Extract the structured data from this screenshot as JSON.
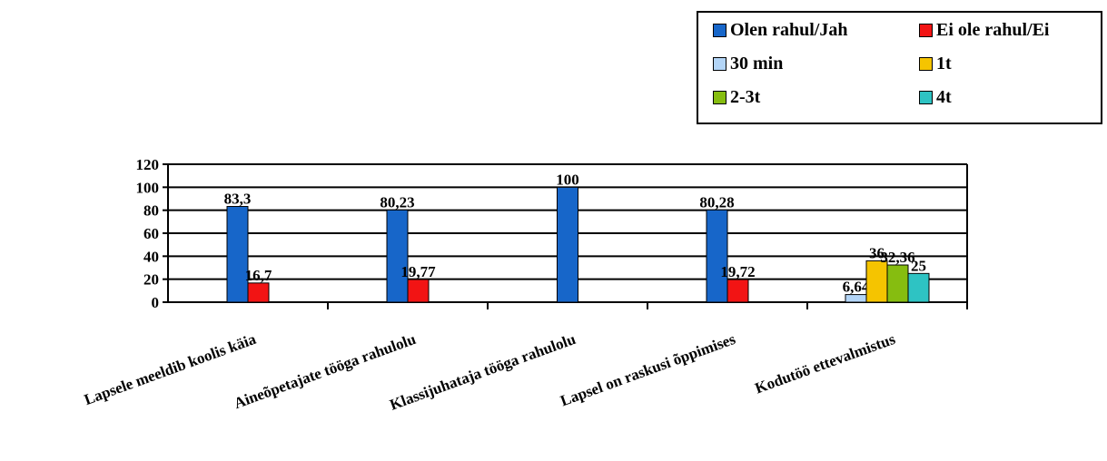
{
  "chart_data": {
    "type": "bar",
    "categories": [
      "Lapsele meeldib koolis käia",
      "Aineõpetajate tööga rahulolu",
      "Klassijuhataja tööga rahulolu",
      "Lapsel on raskusi õppimises",
      "Kodutöö ettevalmistus"
    ],
    "series": [
      {
        "name": "Olen rahul/Jah",
        "color": "#1766C9",
        "values": [
          83.3,
          80.23,
          100,
          80.28,
          null
        ],
        "labels": [
          "83,3",
          "80,23",
          "100",
          "80,28",
          ""
        ]
      },
      {
        "name": "Ei ole rahul/Ei",
        "color": "#F21414",
        "values": [
          16.7,
          19.77,
          null,
          19.72,
          null
        ],
        "labels": [
          "16,7",
          "19,77",
          "",
          "19,72",
          ""
        ]
      },
      {
        "name": "30 min",
        "color": "#B3D5F7",
        "values": [
          null,
          null,
          null,
          null,
          6.64
        ],
        "labels": [
          "",
          "",
          "",
          "",
          "6,64"
        ]
      },
      {
        "name": "1t",
        "color": "#F5C400",
        "values": [
          null,
          null,
          null,
          null,
          36
        ],
        "labels": [
          "",
          "",
          "",
          "",
          "36"
        ]
      },
      {
        "name": "2-3t",
        "color": "#86BD10",
        "values": [
          null,
          null,
          null,
          null,
          32.36
        ],
        "labels": [
          "",
          "",
          "",
          "",
          "32,36"
        ]
      },
      {
        "name": "4t",
        "color": "#2EC3C3",
        "values": [
          null,
          null,
          null,
          null,
          25
        ],
        "labels": [
          "",
          "",
          "",
          "",
          "25"
        ]
      }
    ],
    "y_ticks": [
      "120",
      "100",
      "80",
      "60",
      "40",
      "20",
      "0"
    ],
    "ylim": [
      0,
      120
    ],
    "grid": true,
    "legend_position": "top-right"
  }
}
